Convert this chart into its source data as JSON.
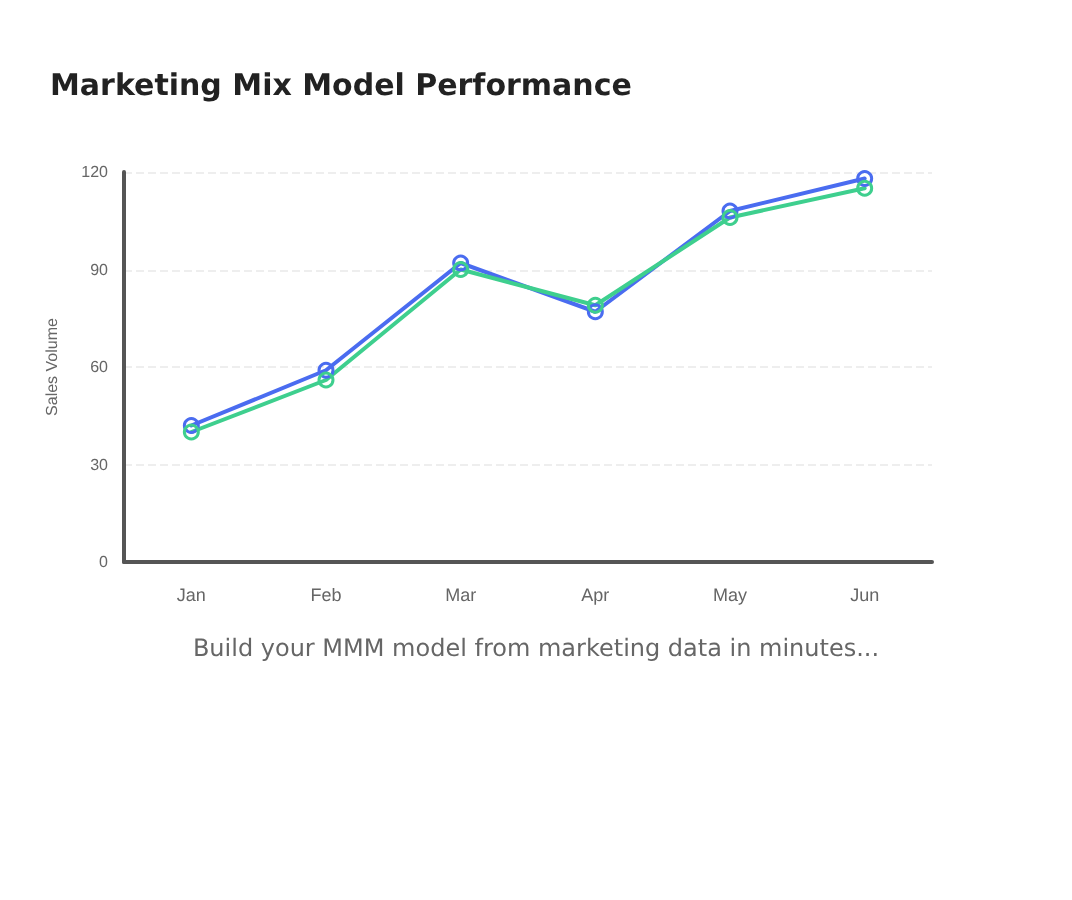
{
  "chart_data": {
    "type": "line",
    "title": "Marketing Mix Model Performance",
    "ylabel": "Sales Volume",
    "categories": [
      "Jan",
      "Feb",
      "Mar",
      "Apr",
      "May",
      "Jun"
    ],
    "series": [
      {
        "color": "#4a6cf0",
        "values": [
          42,
          59,
          92,
          77,
          108,
          118
        ]
      },
      {
        "color": "#3ecf8e",
        "values": [
          40,
          56,
          90,
          79,
          106,
          115
        ]
      }
    ],
    "ylim": [
      0,
      120
    ],
    "yticks": [
      0,
      30,
      60,
      90,
      120
    ],
    "grid": "y",
    "marker": "circle",
    "line_style": "solid",
    "annotations": [
      "Build your MMM model from marketing data in minutes..."
    ]
  }
}
